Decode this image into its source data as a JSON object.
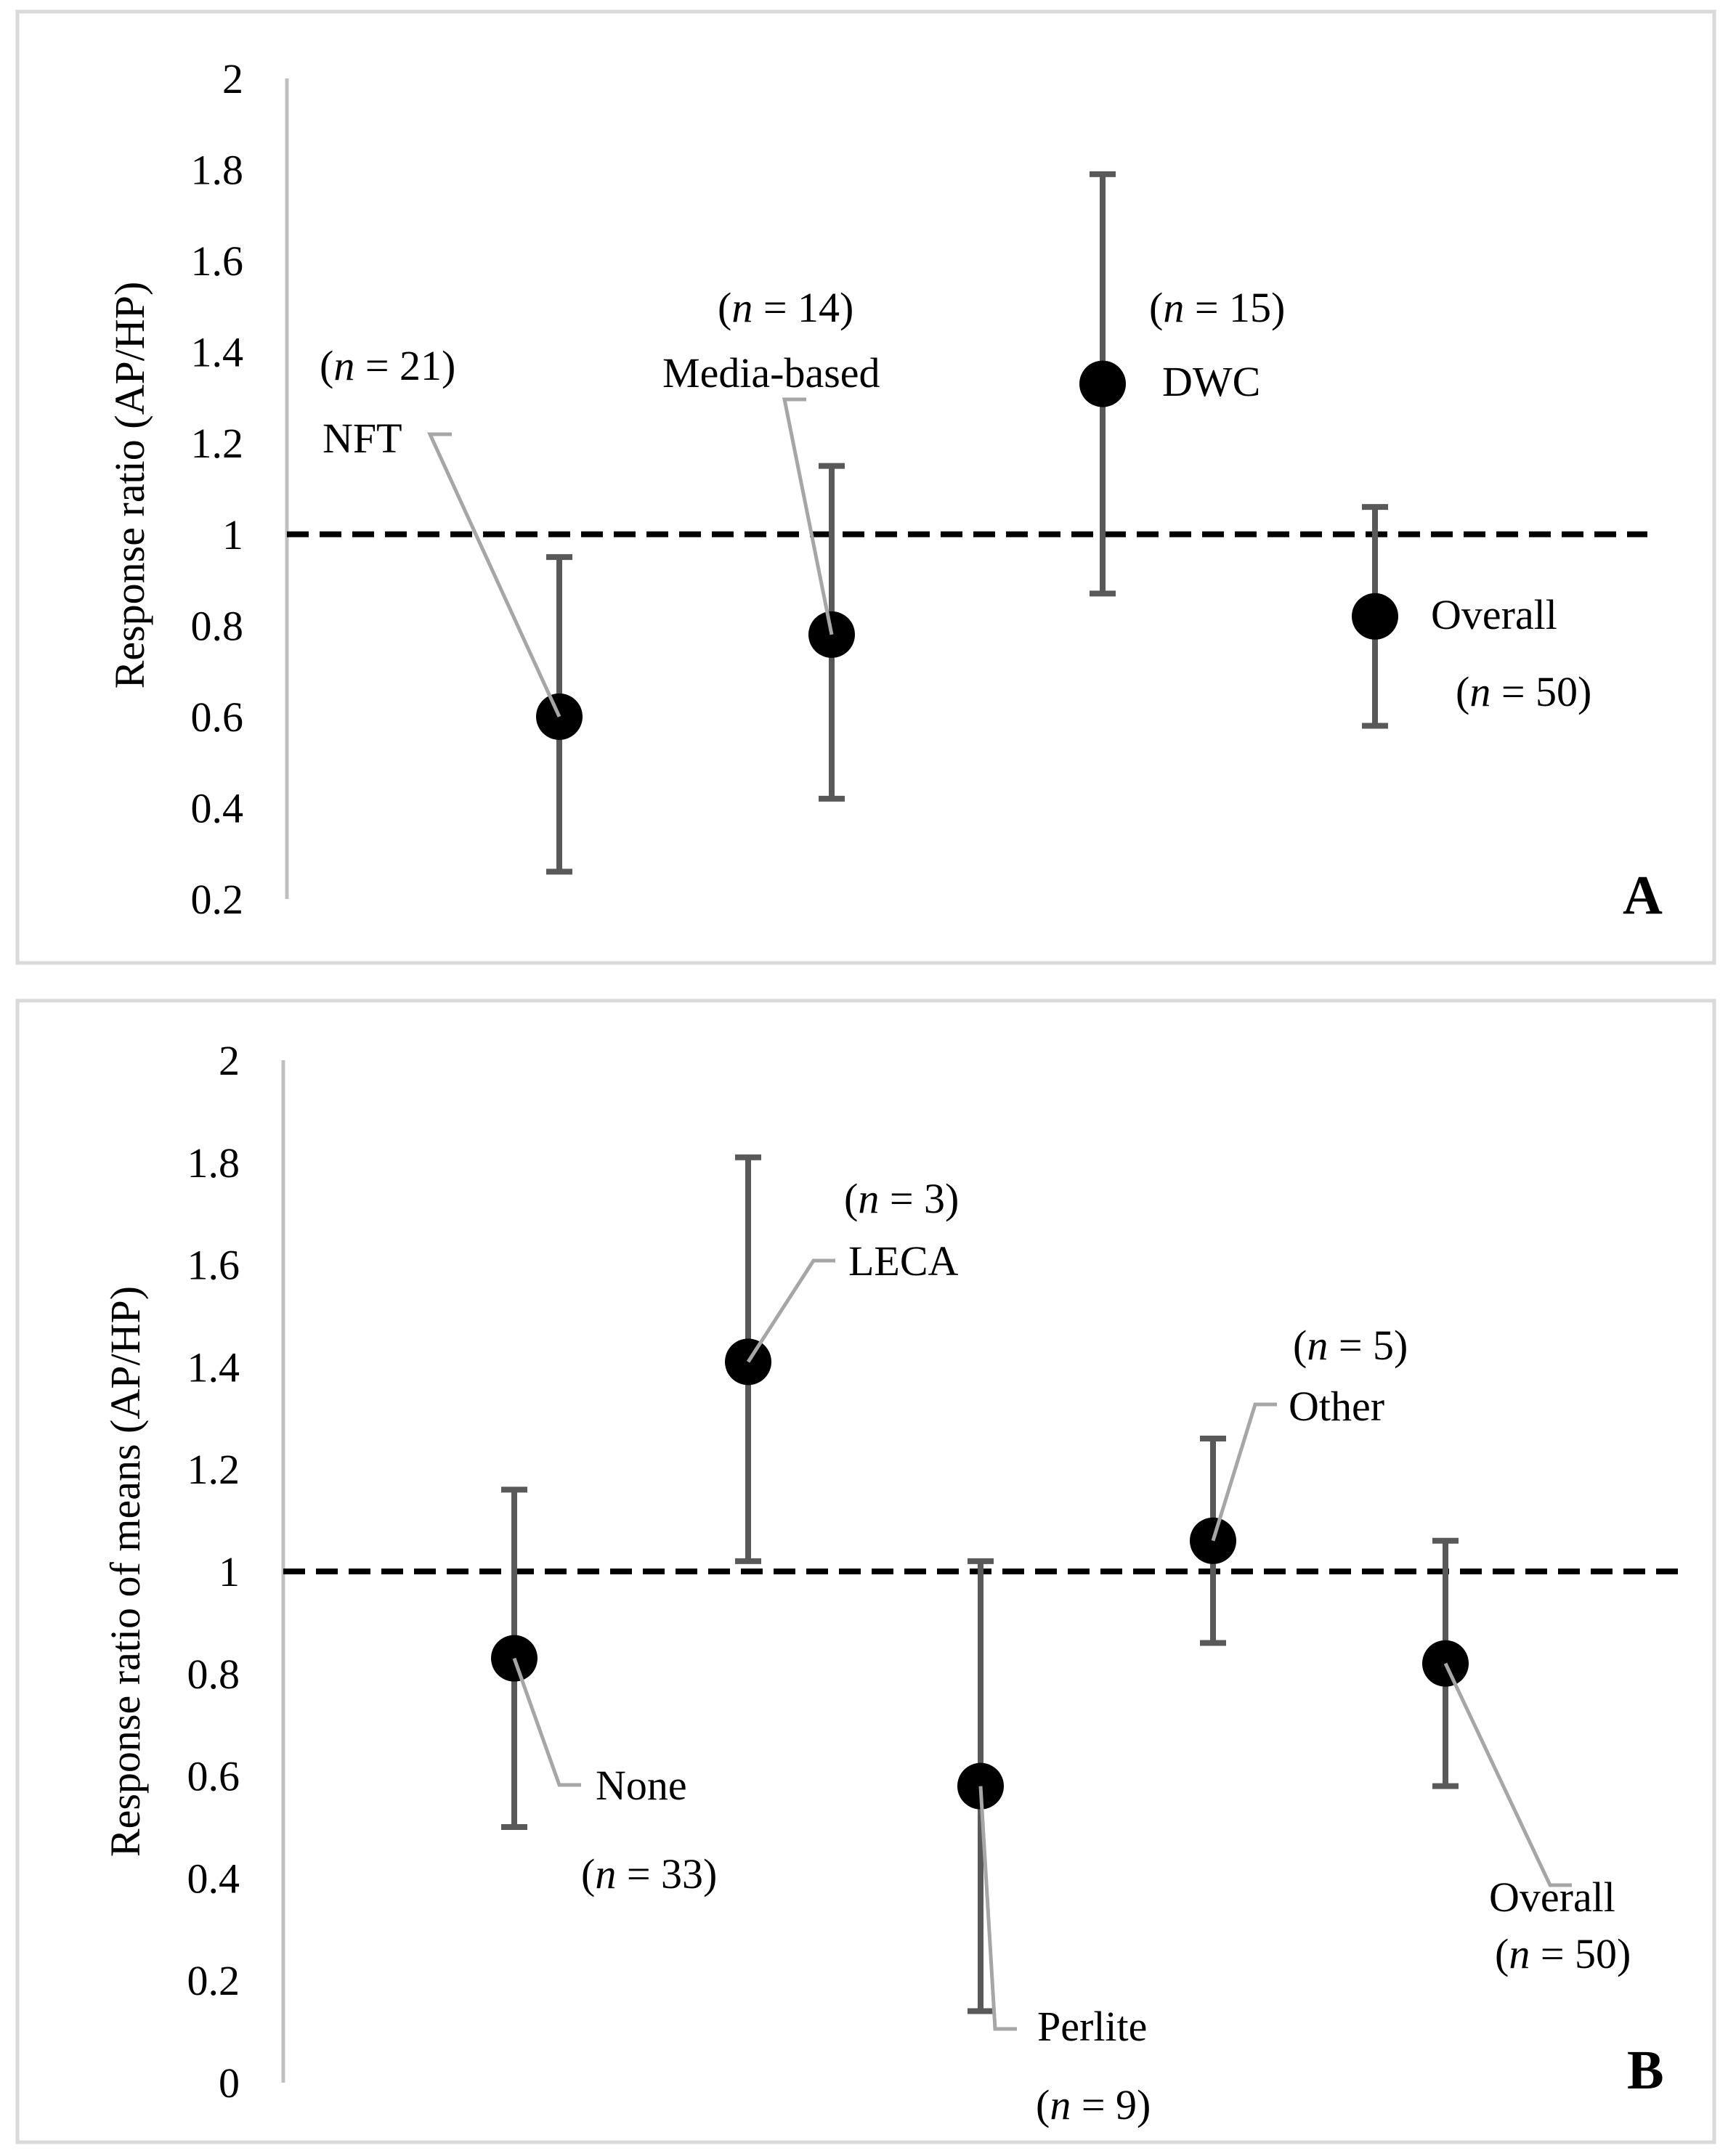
{
  "chart_data": [
    {
      "type": "scatter",
      "panel_label": "A",
      "ylabel": "Response ratio (AP/HP)",
      "xlabel": "",
      "ylim": [
        0.2,
        2
      ],
      "yticks": [
        "0.2",
        "0.4",
        "0.6",
        "0.8",
        "1",
        "1.2",
        "1.4",
        "1.6",
        "1.8",
        "2"
      ],
      "reference_line": 1,
      "points": [
        {
          "name": "NFT",
          "n_label": "n",
          "n_value": "= 21)",
          "value": 0.6,
          "ci": [
            0.26,
            0.95
          ]
        },
        {
          "name": "Media-based",
          "n_label": "n",
          "n_value": "= 14)",
          "value": 0.78,
          "ci": [
            0.42,
            1.15
          ]
        },
        {
          "name": "DWC",
          "n_label": "n",
          "n_value": "= 15)",
          "value": 1.33,
          "ci": [
            0.87,
            1.79
          ]
        },
        {
          "name": "Overall",
          "n_label": "n",
          "n_value": "= 50)",
          "value": 0.82,
          "ci": [
            0.58,
            1.06
          ]
        }
      ]
    },
    {
      "type": "scatter",
      "panel_label": "B",
      "ylabel": "Response ratio of means (AP/HP)",
      "xlabel": "",
      "ylim": [
        0,
        2
      ],
      "yticks": [
        "0",
        "0.2",
        "0.4",
        "0.6",
        "0.8",
        "1",
        "1.2",
        "1.4",
        "1.6",
        "1.8",
        "2"
      ],
      "reference_line": 1,
      "points": [
        {
          "name": "None",
          "n_label": "n",
          "n_value": "= 33)",
          "value": 0.83,
          "ci": [
            0.5,
            1.16
          ]
        },
        {
          "name": "LECA",
          "n_label": "n",
          "n_value": "= 3)",
          "value": 1.41,
          "ci": [
            1.02,
            1.81
          ]
        },
        {
          "name": "Perlite",
          "n_label": "n",
          "n_value": "= 9)",
          "value": 0.58,
          "ci": [
            0.14,
            1.02
          ]
        },
        {
          "name": "Other",
          "n_label": "n",
          "n_value": "= 5)",
          "value": 1.06,
          "ci": [
            0.86,
            1.26
          ]
        },
        {
          "name": "Overall",
          "n_label": "n",
          "n_value": "= 50)",
          "value": 0.82,
          "ci": [
            0.58,
            1.06
          ]
        }
      ]
    }
  ],
  "colors": {
    "frame": "#d9d9d9",
    "axis": "#bfbfbf",
    "errorbar": "#595959",
    "point": "#000000",
    "leader": "#a6a6a6",
    "refline": "#000000",
    "text": "#000000"
  }
}
